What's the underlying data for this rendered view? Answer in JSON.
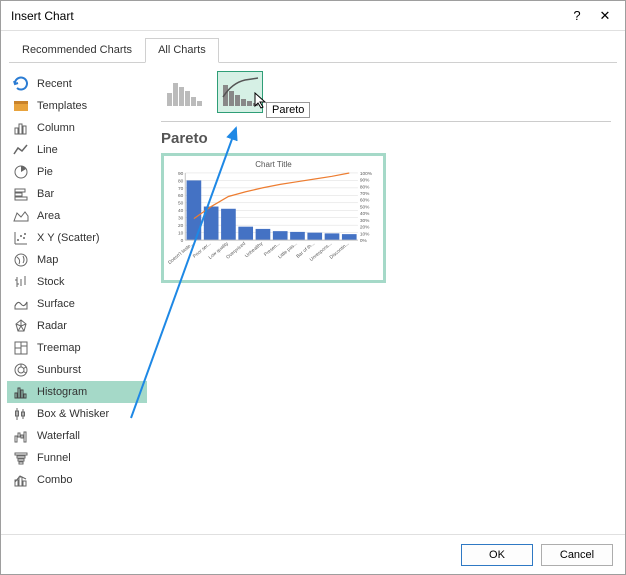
{
  "dialog": {
    "title": "Insert Chart",
    "help_glyph": "?",
    "close_glyph": "✕"
  },
  "tabs": {
    "recommended": "Recommended Charts",
    "all": "All Charts"
  },
  "categories": [
    {
      "label": "Recent"
    },
    {
      "label": "Templates"
    },
    {
      "label": "Column"
    },
    {
      "label": "Line"
    },
    {
      "label": "Pie"
    },
    {
      "label": "Bar"
    },
    {
      "label": "Area"
    },
    {
      "label": "X Y (Scatter)"
    },
    {
      "label": "Map"
    },
    {
      "label": "Stock"
    },
    {
      "label": "Surface"
    },
    {
      "label": "Radar"
    },
    {
      "label": "Treemap"
    },
    {
      "label": "Sunburst"
    },
    {
      "label": "Histogram"
    },
    {
      "label": "Box & Whisker"
    },
    {
      "label": "Waterfall"
    },
    {
      "label": "Funnel"
    },
    {
      "label": "Combo"
    }
  ],
  "selected_category_index": 14,
  "subtype": {
    "tooltip": "Pareto",
    "section_title": "Pareto"
  },
  "preview": {
    "chart_title": "Chart Title",
    "bars": {
      "values": [
        80,
        45,
        42,
        18,
        15,
        12,
        11,
        10,
        9,
        8
      ],
      "color": "#4472c4"
    },
    "line": {
      "values": [
        32,
        50,
        65,
        72,
        78,
        83,
        87,
        91,
        95,
        100
      ],
      "color": "#ed7d31"
    },
    "yaxis_left": {
      "max": 90,
      "ticks": [
        0,
        10,
        20,
        30,
        40,
        50,
        60,
        70,
        80,
        90
      ]
    },
    "yaxis_right": {
      "ticks": [
        "0%",
        "10%",
        "20%",
        "30%",
        "40%",
        "50%",
        "60%",
        "70%",
        "80%",
        "90%",
        "100%"
      ]
    },
    "xlabels": [
      "Doesn't taste...",
      "Poor ser...",
      "Low quality",
      "Overpriced",
      "Unhealthy",
      "Presen...",
      "Little pas...",
      "Bar of th...",
      "Unrespons...",
      "Discontin..."
    ],
    "grid_color": "#d9d9d9",
    "axis_color": "#bfbfbf",
    "label_color": "#595959",
    "label_fontsize": 5
  },
  "buttons": {
    "ok": "OK",
    "cancel": "Cancel"
  },
  "colors": {
    "selection_bg": "#a5d9c8",
    "annotation_arrow": "#1e88e5"
  }
}
